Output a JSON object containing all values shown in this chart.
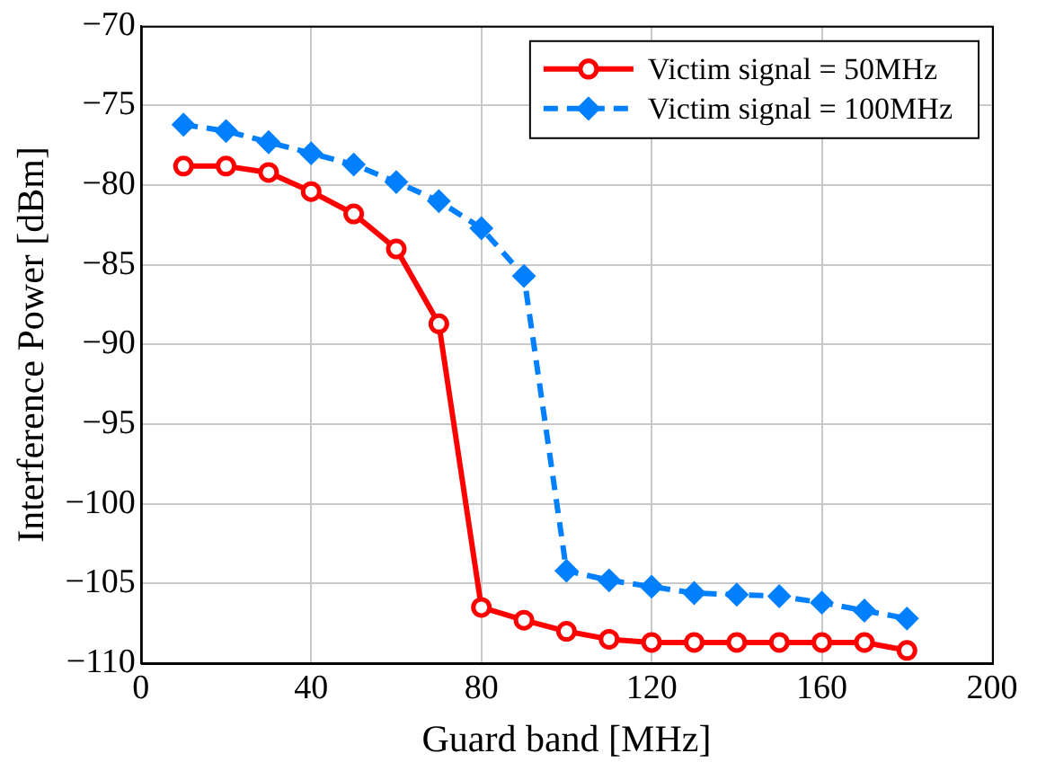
{
  "chart_data": {
    "type": "line",
    "xlabel": "Guard band [MHz]",
    "ylabel": "Interference Power [dBm]",
    "x": [
      10,
      20,
      30,
      40,
      50,
      60,
      70,
      80,
      90,
      100,
      110,
      120,
      130,
      140,
      150,
      160,
      170,
      180
    ],
    "series": [
      {
        "name": "Victim signal = 50MHz",
        "color": "#ff0000",
        "marker": "circle",
        "line_style": "solid",
        "values": [
          -78.8,
          -78.8,
          -79.2,
          -80.4,
          -81.8,
          -84.0,
          -88.7,
          -106.5,
          -107.3,
          -108.0,
          -108.5,
          -108.7,
          -108.7,
          -108.7,
          -108.7,
          -108.7,
          -108.7,
          -109.2
        ]
      },
      {
        "name": "Victim signal = 100MHz",
        "color": "#0080ff",
        "marker": "diamond",
        "line_style": "dashed",
        "values": [
          -76.2,
          -76.6,
          -77.3,
          -78.0,
          -78.7,
          -79.8,
          -81.0,
          -82.7,
          -85.7,
          -104.2,
          -104.8,
          -105.2,
          -105.6,
          -105.7,
          -105.8,
          -106.2,
          -106.7,
          -107.2
        ]
      }
    ],
    "xlim": [
      0,
      200
    ],
    "xticks": [
      0,
      40,
      80,
      120,
      160,
      200
    ],
    "ylim": [
      -110,
      -70
    ],
    "yticks": [
      -110,
      -105,
      -100,
      -95,
      -90,
      -85,
      -80,
      -75,
      -70
    ],
    "grid": true,
    "legend": "top right"
  }
}
